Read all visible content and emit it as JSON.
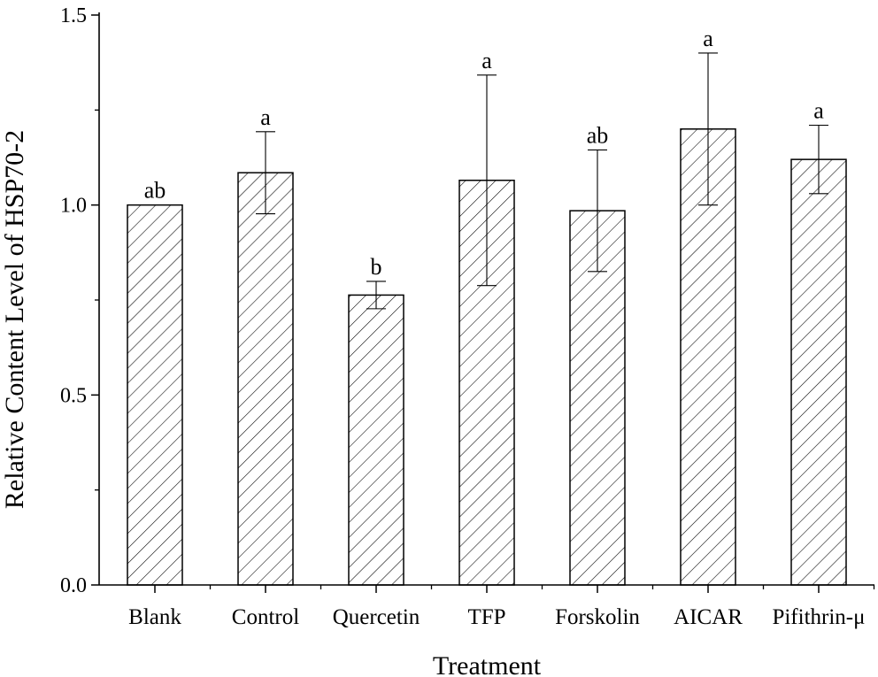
{
  "chart_data": {
    "type": "bar",
    "categories": [
      "Blank",
      "Control",
      "Quercetin",
      "TFP",
      "Forskolin",
      "AICAR",
      "Pifithrin-μ"
    ],
    "values": [
      1.0,
      1.085,
      0.763,
      1.065,
      0.985,
      1.2,
      1.12
    ],
    "error": [
      0,
      0.108,
      0.036,
      0.277,
      0.16,
      0.2,
      0.09
    ],
    "significance": [
      "ab",
      "a",
      "b",
      "a",
      "ab",
      "a",
      "a"
    ],
    "xlabel": "Treatment",
    "ylabel": "Relative Content Level of HSP70-2",
    "ylim": [
      0,
      1.5
    ],
    "yticks": [
      "0.0",
      "0.5",
      "1.0",
      "1.5"
    ],
    "ytick_values": [
      0,
      0.5,
      1.0,
      1.5
    ],
    "grid": false,
    "bar_fill": "hatched-diagonal",
    "colors": {
      "bar_stroke": "#000000",
      "hatch": "#000000",
      "background": "#ffffff"
    }
  }
}
